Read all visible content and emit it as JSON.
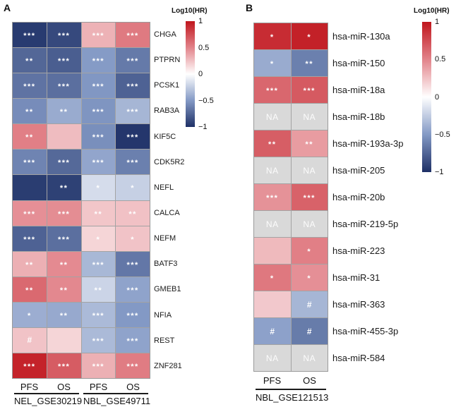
{
  "figure": {
    "panels": [
      {
        "id": "A",
        "letter": "A",
        "legend_title": "Log10(HR)"
      },
      {
        "id": "B",
        "letter": "B",
        "legend_title": "Log10(HR)"
      }
    ]
  },
  "colors": {
    "positive_max": "#c0161d",
    "positive_mid": "#e2838a",
    "zero": "#ffffff",
    "negative_mid": "#8399c5",
    "negative_max": "#1e3066",
    "na_cell": "#d9d9d9",
    "grid_line": "#a3a3a3"
  },
  "chart_data": [
    {
      "type": "heatmap",
      "panel": "A",
      "value_label": "Log10(HR)",
      "value_range": [
        -1,
        1
      ],
      "legend_ticks": [
        "1",
        "0.5",
        "0",
        "-0.5",
        "-1"
      ],
      "columns": [
        "PFS",
        "OS",
        "PFS",
        "OS"
      ],
      "column_groups": [
        {
          "label": "NEL_GSE30219",
          "span": [
            0,
            1
          ]
        },
        {
          "label": "NBL_GSE49711",
          "span": [
            2,
            3
          ]
        }
      ],
      "rows": [
        "CHGA",
        "PTPRN",
        "PCSK1",
        "RAB3A",
        "KIF5C",
        "CDK5R2",
        "NEFL",
        "CALCA",
        "NEFM",
        "BATF3",
        "GMEB1",
        "NFIA",
        "REST",
        "ZNF281"
      ],
      "values": [
        [
          -0.95,
          -0.88,
          0.31,
          0.54
        ],
        [
          -0.74,
          -0.78,
          -0.49,
          -0.65
        ],
        [
          -0.68,
          -0.7,
          -0.51,
          -0.76
        ],
        [
          -0.56,
          -0.41,
          -0.52,
          -0.36
        ],
        [
          0.52,
          0.27,
          -0.55,
          -0.97
        ],
        [
          -0.6,
          -0.73,
          -0.44,
          -0.62
        ],
        [
          -0.94,
          -0.92,
          -0.17,
          -0.23
        ],
        [
          0.45,
          0.46,
          0.23,
          0.25
        ],
        [
          -0.76,
          -0.7,
          0.17,
          0.24
        ],
        [
          0.32,
          0.47,
          -0.35,
          -0.66
        ],
        [
          0.62,
          0.48,
          -0.21,
          -0.45
        ],
        [
          -0.4,
          -0.42,
          -0.34,
          -0.5
        ],
        [
          0.24,
          0.17,
          -0.34,
          -0.45
        ],
        [
          0.94,
          0.68,
          0.32,
          0.53
        ]
      ],
      "annotations": [
        [
          "***",
          "***",
          "***",
          "***"
        ],
        [
          "**",
          "***",
          "***",
          "***"
        ],
        [
          "***",
          "***",
          "***",
          "***"
        ],
        [
          "**",
          "**",
          "***",
          "***"
        ],
        [
          "**",
          "",
          "***",
          "***"
        ],
        [
          "***",
          "***",
          "***",
          "***"
        ],
        [
          "",
          "**",
          "*",
          "*"
        ],
        [
          "***",
          "***",
          "**",
          "**"
        ],
        [
          "***",
          "***",
          "*",
          "*"
        ],
        [
          "**",
          "**",
          "***",
          "***"
        ],
        [
          "**",
          "**",
          "**",
          "***"
        ],
        [
          "*",
          "**",
          "***",
          "***"
        ],
        [
          "#",
          "",
          "***",
          "***"
        ],
        [
          "***",
          "***",
          "***",
          "***"
        ]
      ]
    },
    {
      "type": "heatmap",
      "panel": "B",
      "value_label": "Log10(HR)",
      "value_range": [
        -1,
        1
      ],
      "legend_ticks": [
        "1",
        "0.5",
        "0",
        "-0.5",
        "-1"
      ],
      "columns": [
        "PFS",
        "OS"
      ],
      "column_groups": [
        {
          "label": "NBL_GSE121513",
          "span": [
            0,
            1
          ]
        }
      ],
      "rows": [
        "hsa-miR-130a",
        "hsa-miR-150",
        "hsa-miR-18a",
        "hsa-miR-18b",
        "hsa-miR-193a-3p",
        "hsa-miR-205",
        "hsa-miR-20b",
        "hsa-miR-219-5p",
        "hsa-miR-223",
        "hsa-miR-31",
        "hsa-miR-363",
        "hsa-miR-455-3p",
        "hsa-miR-584"
      ],
      "values": [
        [
          0.9,
          0.95
        ],
        [
          -0.41,
          -0.62
        ],
        [
          0.63,
          0.69
        ],
        [
          null,
          null
        ],
        [
          0.67,
          0.4
        ],
        [
          null,
          null
        ],
        [
          0.44,
          0.65
        ],
        [
          null,
          null
        ],
        [
          0.28,
          0.52
        ],
        [
          0.55,
          0.45
        ],
        [
          0.22,
          -0.36
        ],
        [
          -0.46,
          -0.64
        ],
        [
          null,
          null
        ]
      ],
      "annotations": [
        [
          "*",
          "*"
        ],
        [
          "*",
          "**"
        ],
        [
          "***",
          "***"
        ],
        [
          "NA",
          "NA"
        ],
        [
          "**",
          "**"
        ],
        [
          "NA",
          "NA"
        ],
        [
          "***",
          "***"
        ],
        [
          "NA",
          "NA"
        ],
        [
          "",
          "*"
        ],
        [
          "*",
          "*"
        ],
        [
          "",
          "#"
        ],
        [
          "#",
          "#"
        ],
        [
          "NA",
          "NA"
        ]
      ]
    }
  ]
}
